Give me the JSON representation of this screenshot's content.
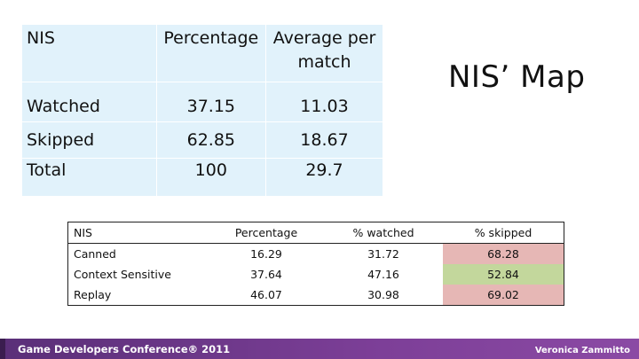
{
  "top_table": {
    "header": [
      "NIS",
      "Percentage",
      "Average per match"
    ],
    "rows": [
      [
        "Watched",
        "37.15",
        "11.03"
      ],
      [
        "Skipped",
        "62.85",
        "18.67"
      ],
      [
        "Total",
        "100",
        "29.7"
      ]
    ],
    "background_color": "#e1f2fb"
  },
  "map_title": "NIS’ Map",
  "bottom_table": {
    "header": [
      "NIS",
      "Percentage",
      "% watched",
      "% skipped"
    ],
    "rows": [
      [
        "Canned",
        "16.29",
        "31.72",
        "68.28"
      ],
      [
        "Context Sensitive",
        "37.64",
        "47.16",
        "52.84"
      ],
      [
        "Replay",
        "46.07",
        "30.98",
        "69.02"
      ]
    ],
    "highlight_colors": {
      "pink": "#e6b7b5",
      "green": "#c3d79c"
    }
  },
  "footer": {
    "left": "Game Developers Conference® 2011",
    "right": "Veronica Zammitto",
    "bar_color": "#7d3f98"
  }
}
